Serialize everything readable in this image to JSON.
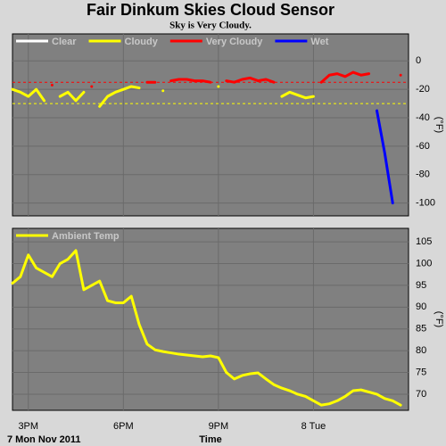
{
  "chart_data": [
    {
      "type": "line",
      "title": "Fair Dinkum Skies Cloud Sensor",
      "subtitle": "Sky is Very Cloudy.",
      "ylabel": "(°F)",
      "x": [
        14.5,
        14.75,
        15,
        15.25,
        15.5,
        15.75,
        16,
        16.25,
        16.5,
        16.75,
        17,
        17.25,
        17.5,
        17.75,
        18,
        18.25,
        18.5,
        18.75,
        19,
        19.25,
        19.5,
        19.75,
        20,
        20.25,
        20.5,
        20.75,
        21,
        21.25,
        21.5,
        21.75,
        22,
        22.25,
        22.5,
        22.75,
        23,
        23.25,
        23.5,
        23.75,
        24,
        24.25,
        24.5,
        24.75,
        25,
        25.25,
        25.5,
        25.75,
        26,
        26.25,
        26.5,
        26.75
      ],
      "series": [
        {
          "name": "Clear",
          "color": "#ffffff",
          "values": [
            null,
            null,
            null,
            null,
            null,
            null,
            null,
            null,
            null,
            null,
            null,
            null,
            null,
            null,
            null,
            null,
            null,
            null,
            null,
            null,
            null,
            null,
            null,
            null,
            null,
            null,
            null,
            null,
            null,
            null,
            null,
            null,
            null,
            null,
            null,
            null,
            null,
            null,
            null,
            null,
            null,
            null,
            null,
            null,
            null,
            null,
            null,
            null,
            null,
            null
          ]
        },
        {
          "name": "Cloudy",
          "color": "#ffff00",
          "values": [
            -20,
            -22,
            -25,
            -20,
            -28,
            null,
            -25,
            -22,
            -28,
            -22,
            null,
            -32,
            -25,
            -22,
            -20,
            -18,
            -19,
            null,
            null,
            -21,
            null,
            null,
            null,
            null,
            null,
            null,
            -18,
            null,
            null,
            null,
            null,
            null,
            null,
            null,
            -25,
            -22,
            -24,
            -26,
            -25,
            null,
            null,
            null,
            null,
            null,
            null,
            null,
            null,
            null,
            null,
            null
          ]
        },
        {
          "name": "Very Cloudy",
          "color": "#ff0000",
          "values": [
            null,
            null,
            null,
            null,
            null,
            -17,
            null,
            null,
            null,
            null,
            -18,
            null,
            null,
            null,
            null,
            null,
            null,
            -15,
            -15,
            null,
            -14,
            -13,
            -13,
            -14,
            -14,
            -15,
            null,
            -14,
            -15,
            -13,
            -12,
            -14,
            -13,
            -15,
            null,
            null,
            null,
            null,
            null,
            -15,
            -10,
            -9,
            -11,
            -8,
            -10,
            -9,
            null,
            null,
            null,
            -10
          ]
        },
        {
          "name": "Wet",
          "color": "#0000ff",
          "values": [
            null,
            null,
            null,
            null,
            null,
            null,
            null,
            null,
            null,
            null,
            null,
            null,
            null,
            null,
            null,
            null,
            null,
            null,
            null,
            null,
            null,
            null,
            null,
            null,
            null,
            null,
            null,
            null,
            null,
            null,
            null,
            null,
            null,
            null,
            null,
            null,
            null,
            null,
            null,
            null,
            null,
            null,
            null,
            null,
            null,
            null,
            -35,
            -65,
            -100,
            null
          ]
        }
      ],
      "thresholds": [
        {
          "value": -15,
          "color": "#ff0000"
        },
        {
          "value": -30,
          "color": "#ffff00"
        }
      ],
      "xlim": [
        14.5,
        27
      ],
      "xticks": [
        15,
        18,
        21,
        24
      ],
      "ylim": [
        -109,
        19
      ],
      "yticks": [
        0,
        -20,
        -40,
        -60,
        -80,
        -100
      ],
      "grid": true
    },
    {
      "type": "line",
      "ylabel": "(°F)",
      "xlabel": "Time",
      "date_label": "7 Mon Nov 2011",
      "x": [
        14.5,
        14.75,
        15,
        15.25,
        15.5,
        15.75,
        16,
        16.25,
        16.5,
        16.75,
        17,
        17.25,
        17.5,
        17.75,
        18,
        18.25,
        18.5,
        18.75,
        19,
        19.25,
        19.5,
        19.75,
        20,
        20.25,
        20.5,
        20.75,
        21,
        21.25,
        21.5,
        21.75,
        22,
        22.25,
        22.5,
        22.75,
        23,
        23.25,
        23.5,
        23.75,
        24,
        24.25,
        24.5,
        24.75,
        25,
        25.25,
        25.5,
        25.75,
        26,
        26.25,
        26.5,
        26.75
      ],
      "series": [
        {
          "name": "Ambient Temp",
          "color": "#ffff00",
          "values": [
            95.5,
            97,
            102,
            99,
            98,
            97,
            100,
            101,
            103,
            94,
            95,
            96,
            91.5,
            91,
            91,
            92.5,
            86,
            81.5,
            80.2,
            79.8,
            79.5,
            79.2,
            79,
            78.8,
            78.6,
            78.8,
            78.4,
            75,
            73.5,
            74.3,
            74.7,
            74.9,
            73.5,
            72.2,
            71.4,
            70.8,
            70,
            69.5,
            68.5,
            67.5,
            67.8,
            68.5,
            69.5,
            70.8,
            71,
            70.5,
            70,
            69,
            68.5,
            67.5
          ]
        }
      ],
      "xlim": [
        14.5,
        27
      ],
      "xticks": [
        {
          "value": 15,
          "label": "3PM"
        },
        {
          "value": 18,
          "label": "6PM"
        },
        {
          "value": 21,
          "label": "9PM"
        },
        {
          "value": 24,
          "label": "8 Tue"
        }
      ],
      "ylim": [
        66.3,
        108.1
      ],
      "yticks": [
        70,
        75,
        80,
        85,
        90,
        95,
        100,
        105
      ],
      "grid": true
    }
  ]
}
